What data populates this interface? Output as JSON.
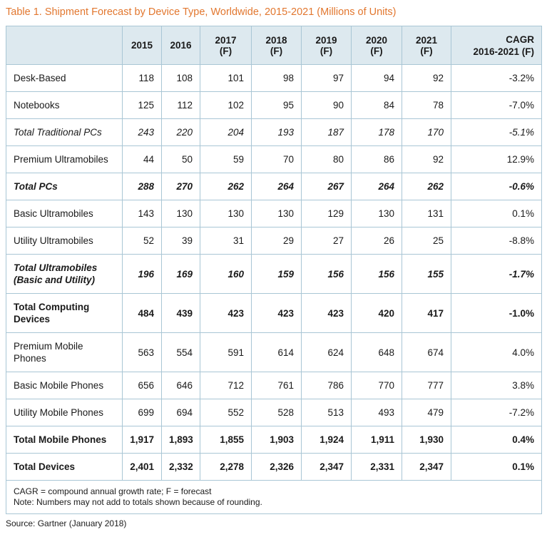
{
  "title": "Table 1. Shipment Forecast by Device Type, Worldwide, 2015-2021 (Millions of Units)",
  "columns": [
    "",
    "2015",
    "2016",
    "2017 (F)",
    "2018 (F)",
    "2019 (F)",
    "2020 (F)",
    "2021 (F)",
    "CAGR\n2016-2021 (F)"
  ],
  "rows": [
    {
      "label": "Desk-Based",
      "style": "normal",
      "values": [
        "118",
        "108",
        "101",
        "98",
        "97",
        "94",
        "92",
        "-3.2%"
      ]
    },
    {
      "label": "Notebooks",
      "style": "normal",
      "values": [
        "125",
        "112",
        "102",
        "95",
        "90",
        "84",
        "78",
        "-7.0%"
      ]
    },
    {
      "label": "Total Traditional PCs",
      "style": "italic",
      "values": [
        "243",
        "220",
        "204",
        "193",
        "187",
        "178",
        "170",
        "-5.1%"
      ]
    },
    {
      "label": "Premium Ultramobiles",
      "style": "normal",
      "values": [
        "44",
        "50",
        "59",
        "70",
        "80",
        "86",
        "92",
        "12.9%"
      ]
    },
    {
      "label": "Total PCs",
      "style": "bold italic",
      "values": [
        "288",
        "270",
        "262",
        "264",
        "267",
        "264",
        "262",
        "-0.6%"
      ]
    },
    {
      "label": "Basic Ultramobiles",
      "style": "normal",
      "values": [
        "143",
        "130",
        "130",
        "130",
        "129",
        "130",
        "131",
        "0.1%"
      ]
    },
    {
      "label": "Utility Ultramobiles",
      "style": "normal",
      "values": [
        "52",
        "39",
        "31",
        "29",
        "27",
        "26",
        "25",
        "-8.8%"
      ]
    },
    {
      "label": "Total Ultramobiles\n(Basic and Utility)",
      "style": "bold italic",
      "values": [
        "196",
        "169",
        "160",
        "159",
        "156",
        "156",
        "155",
        "-1.7%"
      ]
    },
    {
      "label": "Total Computing\nDevices",
      "style": "bold",
      "values": [
        "484",
        "439",
        "423",
        "423",
        "423",
        "420",
        "417",
        "-1.0%"
      ]
    },
    {
      "label": "Premium Mobile\nPhones",
      "style": "normal",
      "values": [
        "563",
        "554",
        "591",
        "614",
        "624",
        "648",
        "674",
        "4.0%"
      ]
    },
    {
      "label": "Basic Mobile Phones",
      "style": "normal",
      "values": [
        "656",
        "646",
        "712",
        "761",
        "786",
        "770",
        "777",
        "3.8%"
      ]
    },
    {
      "label": "Utility Mobile Phones",
      "style": "normal",
      "values": [
        "699",
        "694",
        "552",
        "528",
        "513",
        "493",
        "479",
        "-7.2%"
      ]
    },
    {
      "label": "Total Mobile Phones",
      "style": "bold",
      "values": [
        "1,917",
        "1,893",
        "1,855",
        "1,903",
        "1,924",
        "1,911",
        "1,930",
        "0.4%"
      ]
    },
    {
      "label": "Total Devices",
      "style": "bold",
      "values": [
        "2,401",
        "2,332",
        "2,278",
        "2,326",
        "2,347",
        "2,331",
        "2,347",
        "0.1%"
      ]
    }
  ],
  "notes": [
    "CAGR = compound annual growth rate; F = forecast",
    "Note: Numbers may not add to totals shown because of rounding."
  ],
  "source": "Source: Gartner (January 2018)",
  "colors": {
    "title": "#e2772f",
    "header_bg": "#dde9ef",
    "border": "#a9c6d5"
  }
}
